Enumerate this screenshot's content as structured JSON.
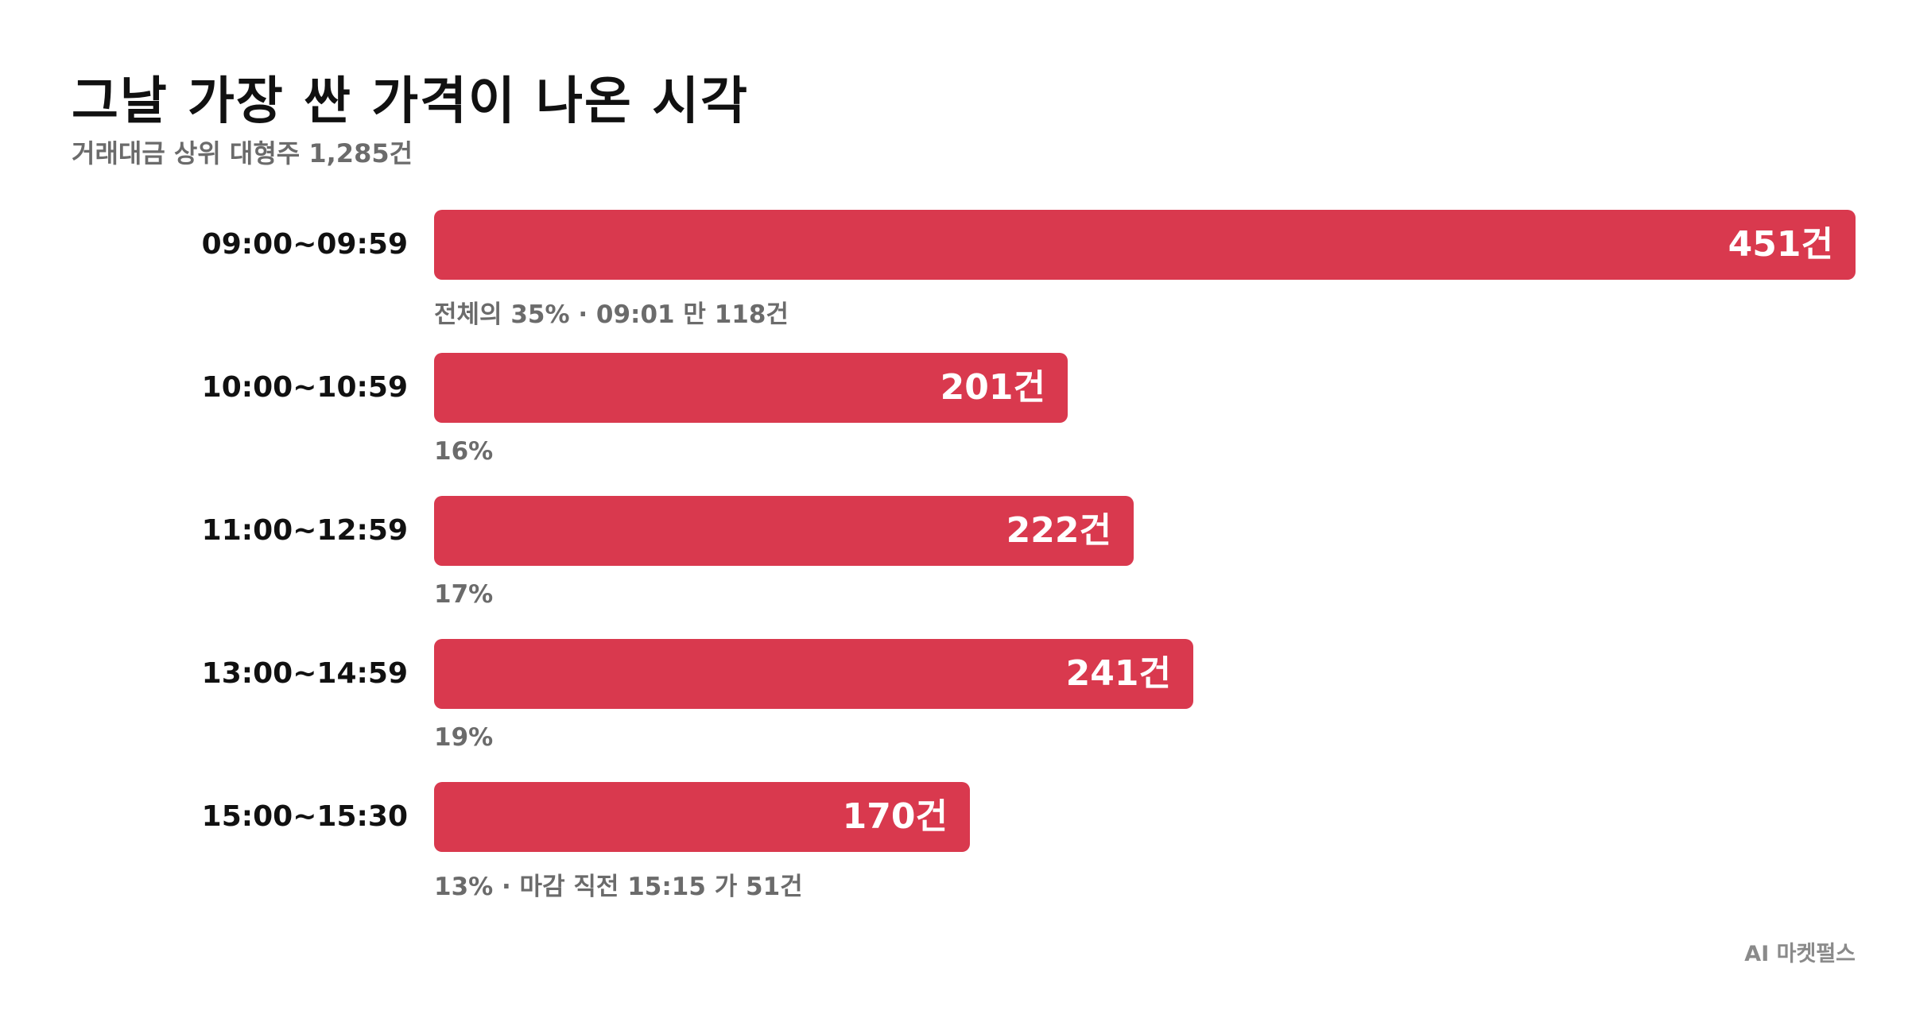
{
  "header": {
    "title": "그날 가장 싼 가격이 나온 시각",
    "subtitle": "거래대금 상위 대형주 1,285건"
  },
  "footer": {
    "source": "AI 마켓펄스"
  },
  "colors": {
    "bar": "#d9394e",
    "bar_text": "#ffffff",
    "note": "#6b6b6b"
  },
  "chart_data": {
    "type": "bar",
    "orientation": "horizontal",
    "title": "그날 가장 싼 가격이 나온 시각",
    "subtitle": "거래대금 상위 대형주 1,285건",
    "categories": [
      "09:00~09:59",
      "10:00~10:59",
      "11:00~12:59",
      "13:00~14:59",
      "15:00~15:30"
    ],
    "values": [
      451,
      201,
      222,
      241,
      170
    ],
    "value_labels": [
      "451건",
      "201건",
      "222건",
      "241건",
      "170건"
    ],
    "notes": [
      "전체의 35% · 09:01 만 118건",
      "16%",
      "17%",
      "19%",
      "13% · 마감 직전 15:15 가 51건"
    ],
    "xlim": [
      0,
      451
    ],
    "grid": false,
    "legend": "none"
  }
}
